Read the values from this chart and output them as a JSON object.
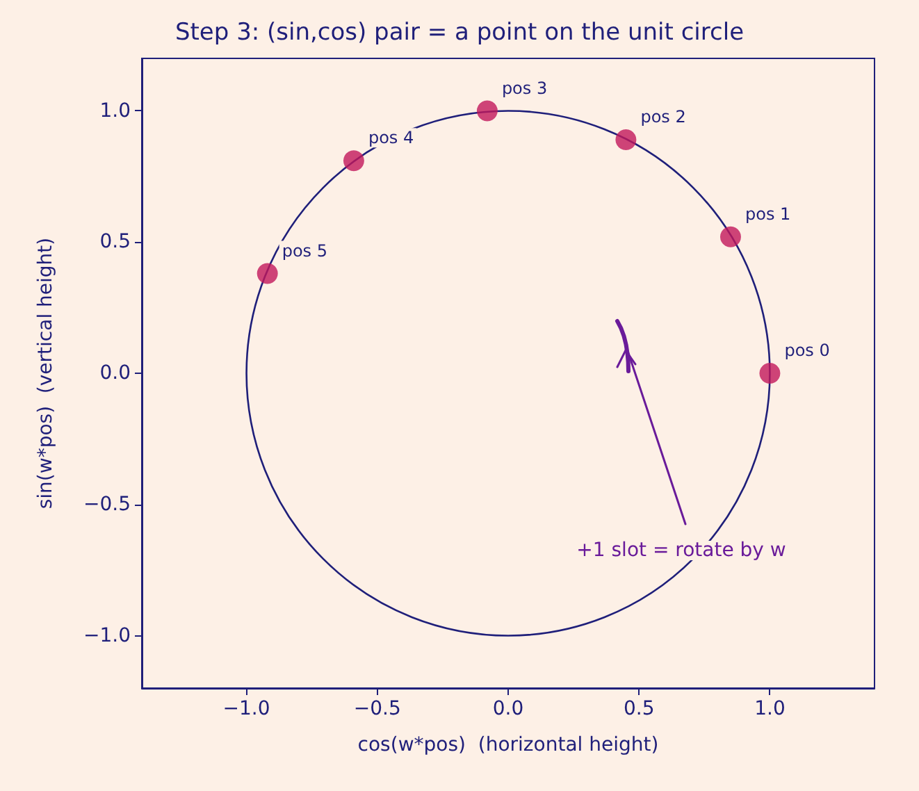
{
  "chart_data": {
    "type": "scatter",
    "title": "Step 3: (sin,cos) pair = a point on the unit circle",
    "xlabel": "cos(w*pos)  (horizontal height)",
    "ylabel": "sin(w*pos)  (vertical height)",
    "xlim": [
      -1.4,
      1.4
    ],
    "ylim": [
      -1.2,
      1.2
    ],
    "xticks": [
      {
        "value": -1,
        "label": "−1.0"
      },
      {
        "value": -0.5,
        "label": "−0.5"
      },
      {
        "value": 0,
        "label": "0.0"
      },
      {
        "value": 0.5,
        "label": "0.5"
      },
      {
        "value": 1,
        "label": "1.0"
      }
    ],
    "yticks": [
      {
        "value": -1,
        "label": "−1.0"
      },
      {
        "value": -0.5,
        "label": "−0.5"
      },
      {
        "value": 0,
        "label": "0.0"
      },
      {
        "value": 0.5,
        "label": "0.5"
      },
      {
        "value": 1,
        "label": "1.0"
      }
    ],
    "grid": false,
    "annotations": [
      "+1 slot = rotate by w"
    ],
    "series": [
      {
        "color": "#c2185b",
        "marker": "circle",
        "x": [
          1,
          0.85,
          0.45,
          -0.08,
          -0.59,
          -0.92
        ],
        "values": [
          0,
          0.52,
          0.89,
          1,
          0.81,
          0.38
        ],
        "value_labels": [
          "pos 0",
          "pos 1",
          "pos 2",
          "pos 3",
          "pos 4",
          "pos 5"
        ]
      }
    ]
  }
}
